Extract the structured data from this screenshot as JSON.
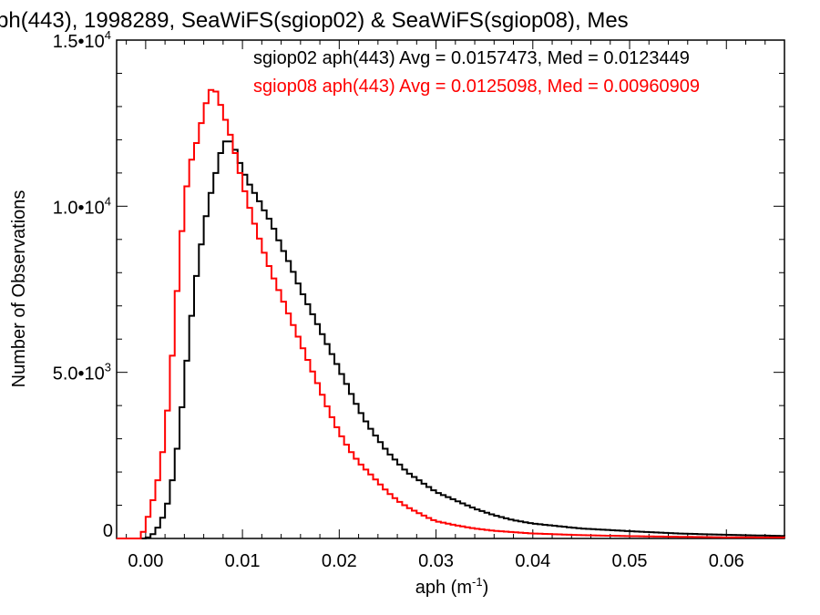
{
  "chart_data": {
    "type": "line",
    "title": "ph(443), 1998289, SeaWiFS(sgiop02) & SeaWiFS(sgiop08), Mes",
    "xlabel_base": "aph (m",
    "xlabel_sup": "-1",
    "xlabel_close": ")",
    "ylabel": "Number of Observations",
    "xlim": [
      -0.003,
      0.066
    ],
    "ylim": [
      0,
      15000
    ],
    "x_ticks": [
      {
        "value": 0.0,
        "label": "0.00"
      },
      {
        "value": 0.01,
        "label": "0.01"
      },
      {
        "value": 0.02,
        "label": "0.02"
      },
      {
        "value": 0.03,
        "label": "0.03"
      },
      {
        "value": 0.04,
        "label": "0.04"
      },
      {
        "value": 0.05,
        "label": "0.05"
      },
      {
        "value": 0.06,
        "label": "0.06"
      }
    ],
    "y_ticks": [
      {
        "value": 0,
        "label": "0",
        "sup": ""
      },
      {
        "value": 5000,
        "label": "5.0•10",
        "sup": "3"
      },
      {
        "value": 10000,
        "label": "1.0•10",
        "sup": "4"
      },
      {
        "value": 15000,
        "label": "1.5•10",
        "sup": "4"
      }
    ],
    "series": [
      {
        "name": "sgiop02 aph(443) Avg = 0.0157473, Med = 0.0123449",
        "color": "#000000",
        "points": [
          [
            0.0,
            0
          ],
          [
            0.0005,
            60
          ],
          [
            0.001,
            200
          ],
          [
            0.0015,
            450
          ],
          [
            0.002,
            800
          ],
          [
            0.0025,
            1300
          ],
          [
            0.003,
            2200
          ],
          [
            0.0035,
            3200
          ],
          [
            0.004,
            4700
          ],
          [
            0.0045,
            6000
          ],
          [
            0.005,
            7400
          ],
          [
            0.0055,
            8400
          ],
          [
            0.006,
            9300
          ],
          [
            0.0065,
            10100
          ],
          [
            0.007,
            10700
          ],
          [
            0.0075,
            11300
          ],
          [
            0.008,
            11900
          ],
          [
            0.0085,
            12000
          ],
          [
            0.009,
            11900
          ],
          [
            0.0095,
            11500
          ],
          [
            0.01,
            11100
          ],
          [
            0.0105,
            10800
          ],
          [
            0.011,
            10500
          ],
          [
            0.0115,
            10300
          ],
          [
            0.012,
            10000
          ],
          [
            0.013,
            9500
          ],
          [
            0.014,
            8800
          ],
          [
            0.015,
            8200
          ],
          [
            0.016,
            7500
          ],
          [
            0.017,
            6900
          ],
          [
            0.018,
            6300
          ],
          [
            0.019,
            5700
          ],
          [
            0.02,
            5100
          ],
          [
            0.021,
            4500
          ],
          [
            0.022,
            3900
          ],
          [
            0.023,
            3400
          ],
          [
            0.024,
            3000
          ],
          [
            0.025,
            2600
          ],
          [
            0.026,
            2300
          ],
          [
            0.027,
            2000
          ],
          [
            0.028,
            1800
          ],
          [
            0.029,
            1600
          ],
          [
            0.03,
            1400
          ],
          [
            0.032,
            1150
          ],
          [
            0.034,
            900
          ],
          [
            0.036,
            700
          ],
          [
            0.038,
            550
          ],
          [
            0.04,
            450
          ],
          [
            0.045,
            300
          ],
          [
            0.05,
            220
          ],
          [
            0.055,
            150
          ],
          [
            0.06,
            110
          ],
          [
            0.065,
            80
          ],
          [
            0.066,
            75
          ]
        ]
      },
      {
        "name": "sgiop08 aph(443) Avg = 0.0125098, Med = 0.00960909",
        "color": "#ff0000",
        "points": [
          [
            -0.0005,
            0
          ],
          [
            0.0,
            400
          ],
          [
            0.0005,
            900
          ],
          [
            0.001,
            1400
          ],
          [
            0.0015,
            2100
          ],
          [
            0.002,
            3100
          ],
          [
            0.0025,
            4600
          ],
          [
            0.003,
            6400
          ],
          [
            0.0035,
            8500
          ],
          [
            0.004,
            10000
          ],
          [
            0.0045,
            11200
          ],
          [
            0.005,
            11600
          ],
          [
            0.0055,
            12200
          ],
          [
            0.006,
            12800
          ],
          [
            0.0065,
            13400
          ],
          [
            0.007,
            13600
          ],
          [
            0.0075,
            13300
          ],
          [
            0.008,
            12800
          ],
          [
            0.0085,
            12400
          ],
          [
            0.009,
            11900
          ],
          [
            0.0095,
            11300
          ],
          [
            0.01,
            10700
          ],
          [
            0.011,
            9700
          ],
          [
            0.012,
            8800
          ],
          [
            0.013,
            8000
          ],
          [
            0.014,
            7300
          ],
          [
            0.015,
            6600
          ],
          [
            0.016,
            5900
          ],
          [
            0.017,
            5200
          ],
          [
            0.018,
            4500
          ],
          [
            0.019,
            3800
          ],
          [
            0.02,
            3200
          ],
          [
            0.021,
            2700
          ],
          [
            0.022,
            2300
          ],
          [
            0.023,
            2000
          ],
          [
            0.024,
            1700
          ],
          [
            0.025,
            1400
          ],
          [
            0.026,
            1150
          ],
          [
            0.027,
            950
          ],
          [
            0.028,
            800
          ],
          [
            0.029,
            650
          ],
          [
            0.03,
            520
          ],
          [
            0.032,
            400
          ],
          [
            0.034,
            300
          ],
          [
            0.036,
            230
          ],
          [
            0.04,
            150
          ],
          [
            0.045,
            100
          ],
          [
            0.05,
            70
          ],
          [
            0.055,
            50
          ],
          [
            0.06,
            35
          ],
          [
            0.066,
            30
          ]
        ]
      }
    ]
  }
}
